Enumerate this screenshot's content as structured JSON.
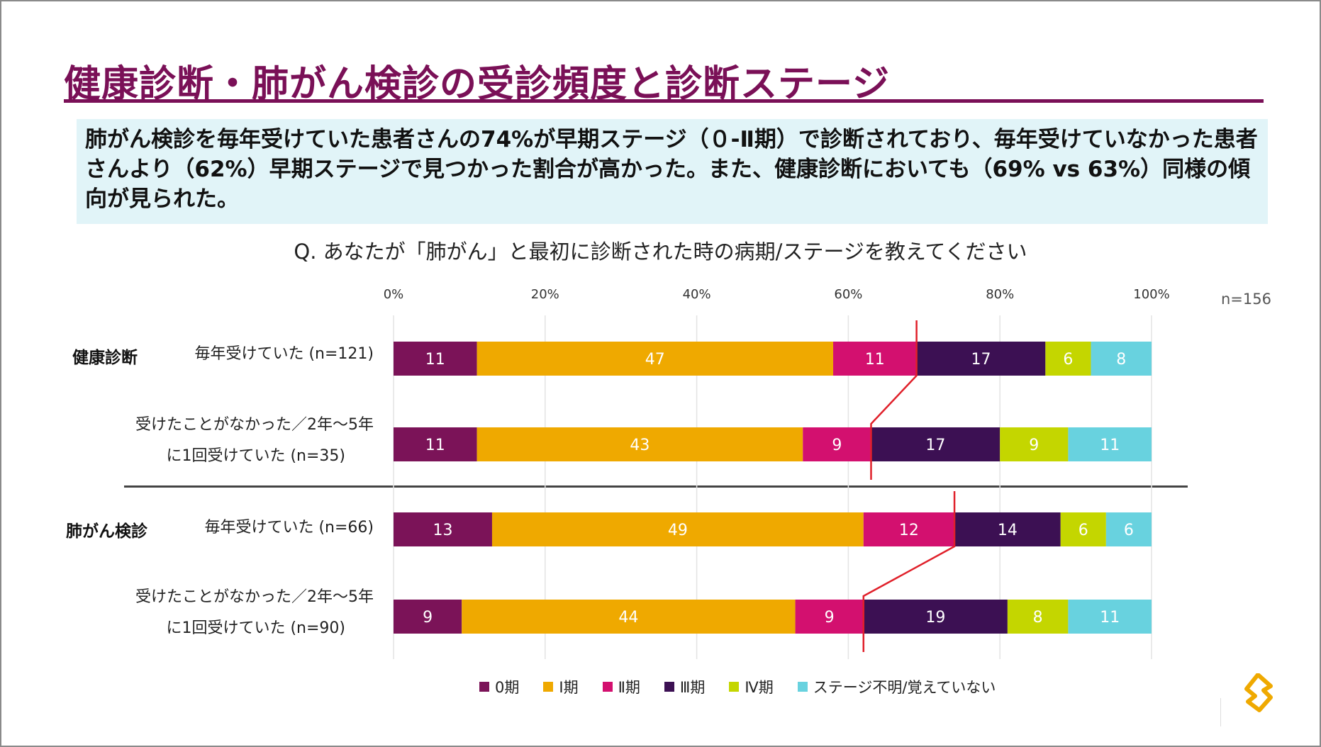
{
  "title": "健康診断・肺がん検診の受診頻度と診断ステージ",
  "summary": "肺がん検診を毎年受けていた患者さんの74%が早期ステージ（０-Ⅱ期）で診断されており、毎年受けていなかった患者さんより（62%）早期ステージで見つかった割合が高かった。また、健康診断においても（69% vs 63%）同様の傾向が見られた。",
  "question": "Q. あなたが「肺がん」と最初に診断された時の病期/ステージを教えてください",
  "n_total": "n=156",
  "groups": {
    "health": "健康診断",
    "lung": "肺がん検診"
  },
  "rows": {
    "r1": "毎年受けていた (n=121)",
    "r2a": "受けたことがなかった／2年～5年",
    "r2b": "に1回受けていた (n=35)",
    "r3": "毎年受けていた (n=66)",
    "r4a": "受けたことがなかった／2年～5年",
    "r4b": "に1回受けていた (n=90)"
  },
  "chart_data": {
    "type": "bar",
    "orientation": "horizontal",
    "stacked": true,
    "xlim": [
      0,
      100
    ],
    "ticks": [
      "0%",
      "20%",
      "40%",
      "60%",
      "80%",
      "100%"
    ],
    "categories": [
      "健康診断 毎年受けていた (n=121)",
      "健康診断 受けたことがなかった／2年～5年に1回受けていた (n=35)",
      "肺がん検診 毎年受けていた (n=66)",
      "肺がん検診 受けたことがなかった／2年～5年に1回受けていた (n=90)"
    ],
    "series": [
      {
        "name": "0期",
        "color": "#7b1358",
        "values": [
          11,
          11,
          13,
          9
        ]
      },
      {
        "name": "Ⅰ期",
        "color": "#efa900",
        "values": [
          47,
          43,
          49,
          44
        ]
      },
      {
        "name": "Ⅱ期",
        "color": "#d3106f",
        "values": [
          11,
          9,
          12,
          9
        ]
      },
      {
        "name": "Ⅲ期",
        "color": "#3c1053",
        "values": [
          17,
          17,
          14,
          19
        ]
      },
      {
        "name": "Ⅳ期",
        "color": "#c4d600",
        "values": [
          6,
          9,
          6,
          8
        ]
      },
      {
        "name": "ステージ不明/覚えていない",
        "color": "#68d2df",
        "values": [
          8,
          11,
          6,
          11
        ]
      }
    ],
    "early_stage_cumulative": [
      69,
      63,
      74,
      62
    ],
    "connector_color": "#e0202a"
  },
  "colors": {
    "brand": "#7a1057",
    "summary_bg": "#e1f4f8",
    "logo": "#efa900"
  }
}
